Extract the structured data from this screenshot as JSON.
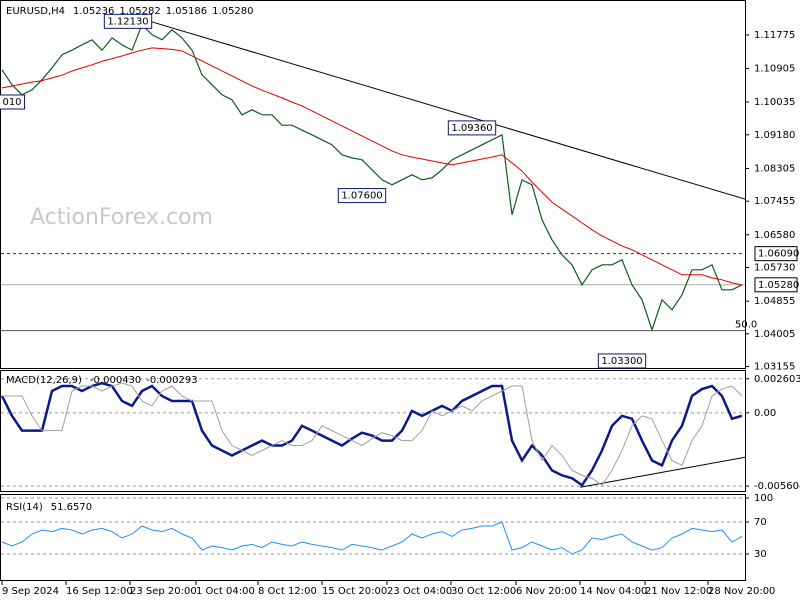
{
  "chart_data": [
    {
      "type": "line",
      "title": "EURUSD,H4",
      "watermark": "ActionForex.com",
      "readout": [
        1.05236,
        1.05282,
        1.05186,
        {
          "value": 1.0528,
          "label": "1.05280"
        }
      ],
      "xlim": [
        0,
        74
      ],
      "xticks": [
        {
          "value": 0,
          "label": "9 Sep 2024"
        },
        {
          "value": 6.4,
          "label": "16 Sep 12:00"
        },
        {
          "value": 12.8,
          "label": "23 Sep 20:00"
        },
        {
          "value": 19.4,
          "label": "1 Oct 04:00"
        },
        {
          "value": 25.6,
          "label": "8 Oct 12:00"
        },
        {
          "value": 32,
          "label": "15 Oct 20:00"
        },
        {
          "value": 38.5,
          "label": "23 Oct 04:00"
        },
        {
          "value": 44.9,
          "label": "30 Oct 12:00"
        },
        {
          "value": 51.4,
          "label": "6 Nov 20:00"
        },
        {
          "value": 57.8,
          "label": "14 Nov 04:00"
        },
        {
          "value": 64.3,
          "label": "21 Nov 12:00"
        },
        {
          "value": 70.6,
          "label": "28 Nov 20:00"
        }
      ],
      "ylim": [
        1.03117,
        1.12633
      ],
      "yticks": [
        1.11775,
        1.10905,
        1.10035,
        {
          "value": 1.0918,
          "label": "1.09180"
        },
        1.08305,
        1.07455,
        {
          "value": 1.0658,
          "label": "1.06580"
        },
        {
          "value": 1.0573,
          "label": "1.05730"
        },
        1.04855,
        1.04005,
        1.03155
      ],
      "grid": false,
      "series": [
        {
          "color": "#0b5d1e",
          "values": [
            1.1087,
            1.1048,
            1.1022,
            1.1035,
            1.1061,
            1.1092,
            1.1126,
            1.1138,
            1.1152,
            1.1165,
            1.1138,
            1.117,
            1.1152,
            1.1138,
            1.1204,
            1.1178,
            1.1165,
            1.1191,
            1.117,
            1.1138,
            1.1074,
            1.1048,
            1.1022,
            1.1009,
            1.097,
            1.0983,
            1.097,
            1.097,
            1.0943,
            1.0943,
            1.093,
            1.0918,
            1.0905,
            1.0892,
            1.0866,
            1.0858,
            1.0853,
            1.0827,
            1.0801,
            1.0788,
            1.0801,
            1.0814,
            1.0801,
            1.0806,
            1.0827,
            1.0853,
            1.0866,
            1.0879,
            1.0892,
            1.0905,
            1.0918,
            1.071,
            1.0801,
            1.0788,
            1.0697,
            1.0645,
            1.0606,
            1.058,
            1.0528,
            1.0567,
            1.058,
            1.058,
            1.0593,
            1.0528,
            1.0489,
            1.0411,
            1.0489,
            1.0463,
            1.0502,
            1.0567,
            1.0567,
            1.058,
            1.0515,
            1.0515,
            1.0528
          ]
        },
        {
          "color": "#e00000",
          "values": [
            1.104,
            1.1045,
            1.105,
            1.1055,
            1.1059,
            1.1066,
            1.1073,
            1.1084,
            1.1092,
            1.11,
            1.1109,
            1.1116,
            1.1123,
            1.1131,
            1.1138,
            1.1144,
            1.1142,
            1.114,
            1.1136,
            1.1123,
            1.111,
            1.1097,
            1.1084,
            1.1071,
            1.1058,
            1.1045,
            1.1034,
            1.1024,
            1.1014,
            1.1003,
            1.0993,
            1.098,
            1.0967,
            1.0954,
            1.0941,
            1.0928,
            1.0915,
            1.0902,
            1.0889,
            1.0876,
            1.0866,
            1.086,
            1.0855,
            1.085,
            1.0845,
            1.084,
            1.0845,
            1.085,
            1.0855,
            1.086,
            1.0866,
            1.0845,
            1.0824,
            1.0795,
            1.0769,
            1.0743,
            1.0725,
            1.0707,
            1.0689,
            1.0671,
            1.0655,
            1.0642,
            1.0629,
            1.0619,
            1.0606,
            1.0593,
            1.058,
            1.0567,
            1.0554,
            1.0554,
            1.0554,
            1.0546,
            1.0541,
            1.0533,
            1.0528
          ]
        }
      ],
      "trendlines": [
        {
          "x": [
            14.3,
            75.3
          ],
          "y": [
            1.1217,
            1.0743
          ]
        }
      ],
      "levels": [
        {
          "value": 1.0609,
          "label": "1.06090",
          "style": "dashed"
        },
        {
          "value": 1.0528,
          "label": "1.05280",
          "style": "solid"
        }
      ],
      "fib_levels": [
        {
          "name": "50.0",
          "value": 1.0409
        }
      ],
      "annotations": [
        {
          "label": "1.12130",
          "value": 1.1213
        },
        {
          "label": "1.09360",
          "value": 1.0936
        },
        {
          "label": "1.07600",
          "value": 1.076
        },
        {
          "label": "1.03300",
          "value": 1.033
        },
        {
          "label": "010"
        }
      ]
    },
    {
      "type": "line",
      "title": "MACD(12,26,9)",
      "readout": [
        {
          "value": -0.00043,
          "label": "-0.000430"
        },
        -0.000293
      ],
      "xlim": [
        0,
        74
      ],
      "ylim": [
        -0.0059,
        0.0032
      ],
      "yticks": [
        0.002603,
        {
          "value": 0,
          "label": "0.00"
        },
        -0.005604
      ],
      "grid": true,
      "series": [
        {
          "color": "#0a1a8c",
          "values": [
            0.00129,
            -0.00023,
            -0.00136,
            -0.00136,
            -0.00136,
            0.00167,
            0.00205,
            0.00205,
            0.00167,
            0.00205,
            0.00227,
            0.00205,
            0.00091,
            0.00053,
            0.00167,
            0.00205,
            0.00129,
            0.00091,
            0.00091,
            0.00091,
            -0.00136,
            -0.0025,
            -0.00288,
            -0.00326,
            -0.00288,
            -0.0025,
            -0.00212,
            -0.0025,
            -0.0025,
            -0.00212,
            -0.00099,
            -0.00136,
            -0.00174,
            -0.00212,
            -0.0025,
            -0.00197,
            -0.00152,
            -0.00174,
            -0.00212,
            -0.00212,
            -0.00136,
            0.00015,
            -0.00023,
            0.00015,
            0.00053,
            0.00015,
            0.00091,
            0.00129,
            0.00167,
            0.00205,
            0.00205,
            -0.00212,
            -0.00364,
            -0.0025,
            -0.00326,
            -0.0044,
            -0.00478,
            -0.005,
            -0.00553,
            -0.0044,
            -0.00288,
            -0.00099,
            -0.00023,
            -0.00045,
            -0.00212,
            -0.00364,
            -0.00402,
            -0.00212,
            -0.00099,
            0.00129,
            0.00182,
            0.00205,
            0.00129,
            -0.00045,
            -0.00023
          ]
        },
        {
          "color": "#a0a0a0",
          "values": [
            0.00129,
            0.00129,
            0.00129,
            -0.00023,
            -0.00136,
            -0.00136,
            -0.00136,
            0.00167,
            0.00205,
            0.00205,
            0.00167,
            0.00205,
            0.00227,
            0.00205,
            0.00091,
            0.00053,
            0.00167,
            0.00205,
            0.00129,
            0.00091,
            0.00091,
            0.00091,
            -0.00136,
            -0.0025,
            -0.00288,
            -0.00326,
            -0.00288,
            -0.0025,
            -0.00212,
            -0.0025,
            -0.0025,
            -0.00212,
            -0.00099,
            -0.00136,
            -0.00174,
            -0.00212,
            -0.0025,
            -0.00197,
            -0.00152,
            -0.00174,
            -0.00212,
            -0.00212,
            -0.00136,
            0.00015,
            -0.00023,
            0.00015,
            0.00053,
            0.00015,
            0.00091,
            0.00129,
            0.00167,
            0.00205,
            0.00205,
            -0.00212,
            -0.00364,
            -0.0025,
            -0.00326,
            -0.0044,
            -0.00478,
            -0.005,
            -0.00553,
            -0.0044,
            -0.00288,
            -0.00099,
            -0.00023,
            -0.00045,
            -0.00212,
            -0.00364,
            -0.00402,
            -0.00212,
            -0.00099,
            0.00129,
            0.00182,
            0.00205,
            0.00129
          ]
        }
      ],
      "trendlines": [
        {
          "x": [
            57.8,
            75.3
          ],
          "y": [
            -0.00569,
            -0.00326
          ]
        }
      ]
    },
    {
      "type": "line",
      "title": "RSI(14)",
      "readout": [
        {
          "value": 51.657,
          "label": "51.6570"
        }
      ],
      "xlim": [
        0,
        74
      ],
      "ylim": [
        0,
        100
      ],
      "yticks": [
        100,
        70,
        30
      ],
      "grid": true,
      "series": [
        {
          "color": "#1e90ff",
          "values": [
            45,
            40,
            45,
            55,
            60,
            58,
            62,
            60,
            55,
            60,
            62,
            58,
            50,
            55,
            65,
            60,
            58,
            62,
            55,
            50,
            35,
            40,
            38,
            35,
            40,
            42,
            38,
            45,
            42,
            40,
            45,
            42,
            40,
            38,
            35,
            42,
            40,
            38,
            35,
            40,
            45,
            55,
            50,
            55,
            58,
            52,
            60,
            62,
            65,
            65,
            70,
            35,
            38,
            45,
            40,
            35,
            38,
            30,
            35,
            50,
            48,
            52,
            55,
            45,
            40,
            35,
            38,
            50,
            55,
            62,
            60,
            58,
            60,
            45,
            52
          ]
        }
      ]
    }
  ]
}
